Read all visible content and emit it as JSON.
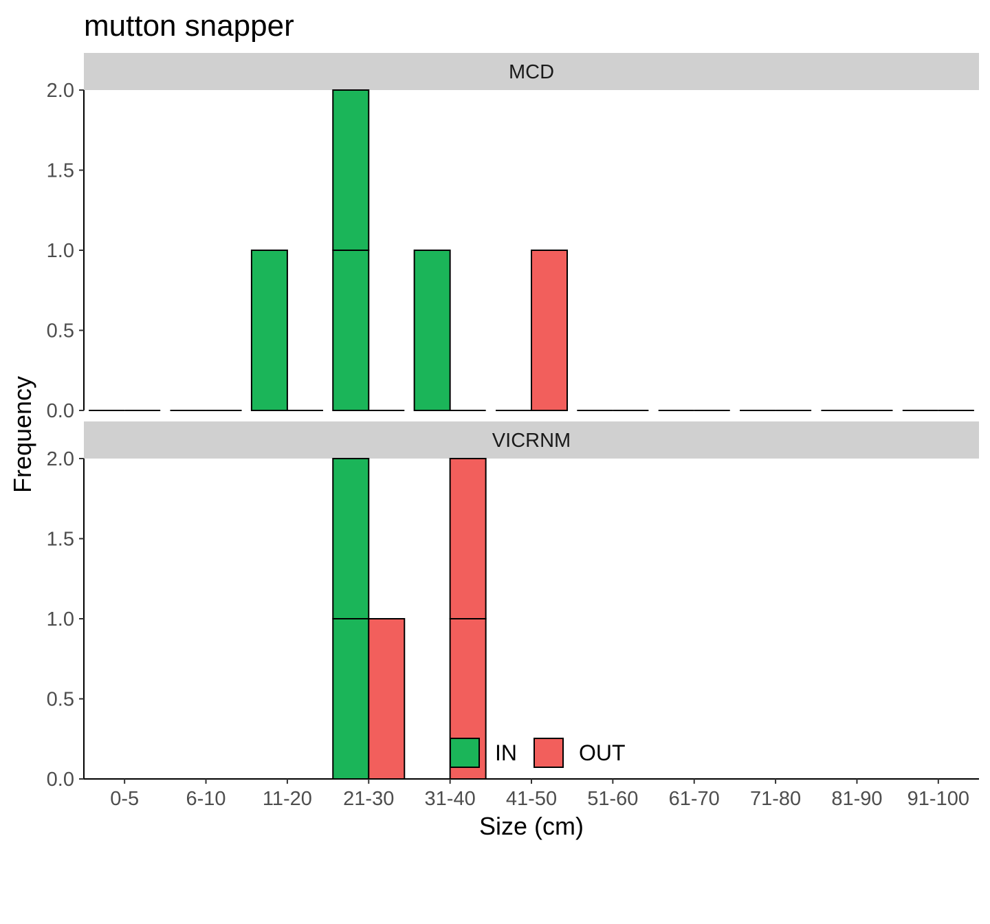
{
  "chart_data": {
    "type": "bar",
    "title": "mutton snapper",
    "xlabel": "Size (cm)",
    "ylabel": "Frequency",
    "ylim": [
      0,
      2
    ],
    "yticks": [
      "0.0",
      "0.5",
      "1.0",
      "1.5",
      "2.0"
    ],
    "categories": [
      "0-5",
      "6-10",
      "11-20",
      "21-30",
      "31-40",
      "41-50",
      "51-60",
      "61-70",
      "71-80",
      "81-90",
      "91-100"
    ],
    "legend": {
      "position": "bottom",
      "entries": [
        "IN",
        "OUT"
      ]
    },
    "colors": {
      "IN": "#1bb559",
      "OUT": "#f25f5c",
      "strip": "#d0d0d0"
    },
    "panels": [
      {
        "label": "MCD",
        "series": [
          {
            "name": "IN",
            "values": [
              0,
              0,
              1,
              2,
              1,
              0,
              0,
              0,
              0,
              0,
              0
            ]
          },
          {
            "name": "OUT",
            "values": [
              0,
              0,
              0,
              0,
              0,
              1,
              0,
              0,
              0,
              0,
              0
            ]
          }
        ],
        "notes": "21-30 IN bar drawn as two stacked units"
      },
      {
        "label": "VICRNM",
        "series": [
          {
            "name": "IN",
            "values": [
              0,
              0,
              0,
              2,
              0,
              0,
              0,
              0,
              0,
              0,
              0
            ]
          },
          {
            "name": "OUT",
            "values": [
              0,
              0,
              0,
              1,
              2,
              0,
              0,
              0,
              0,
              0,
              0
            ]
          }
        ]
      }
    ]
  }
}
